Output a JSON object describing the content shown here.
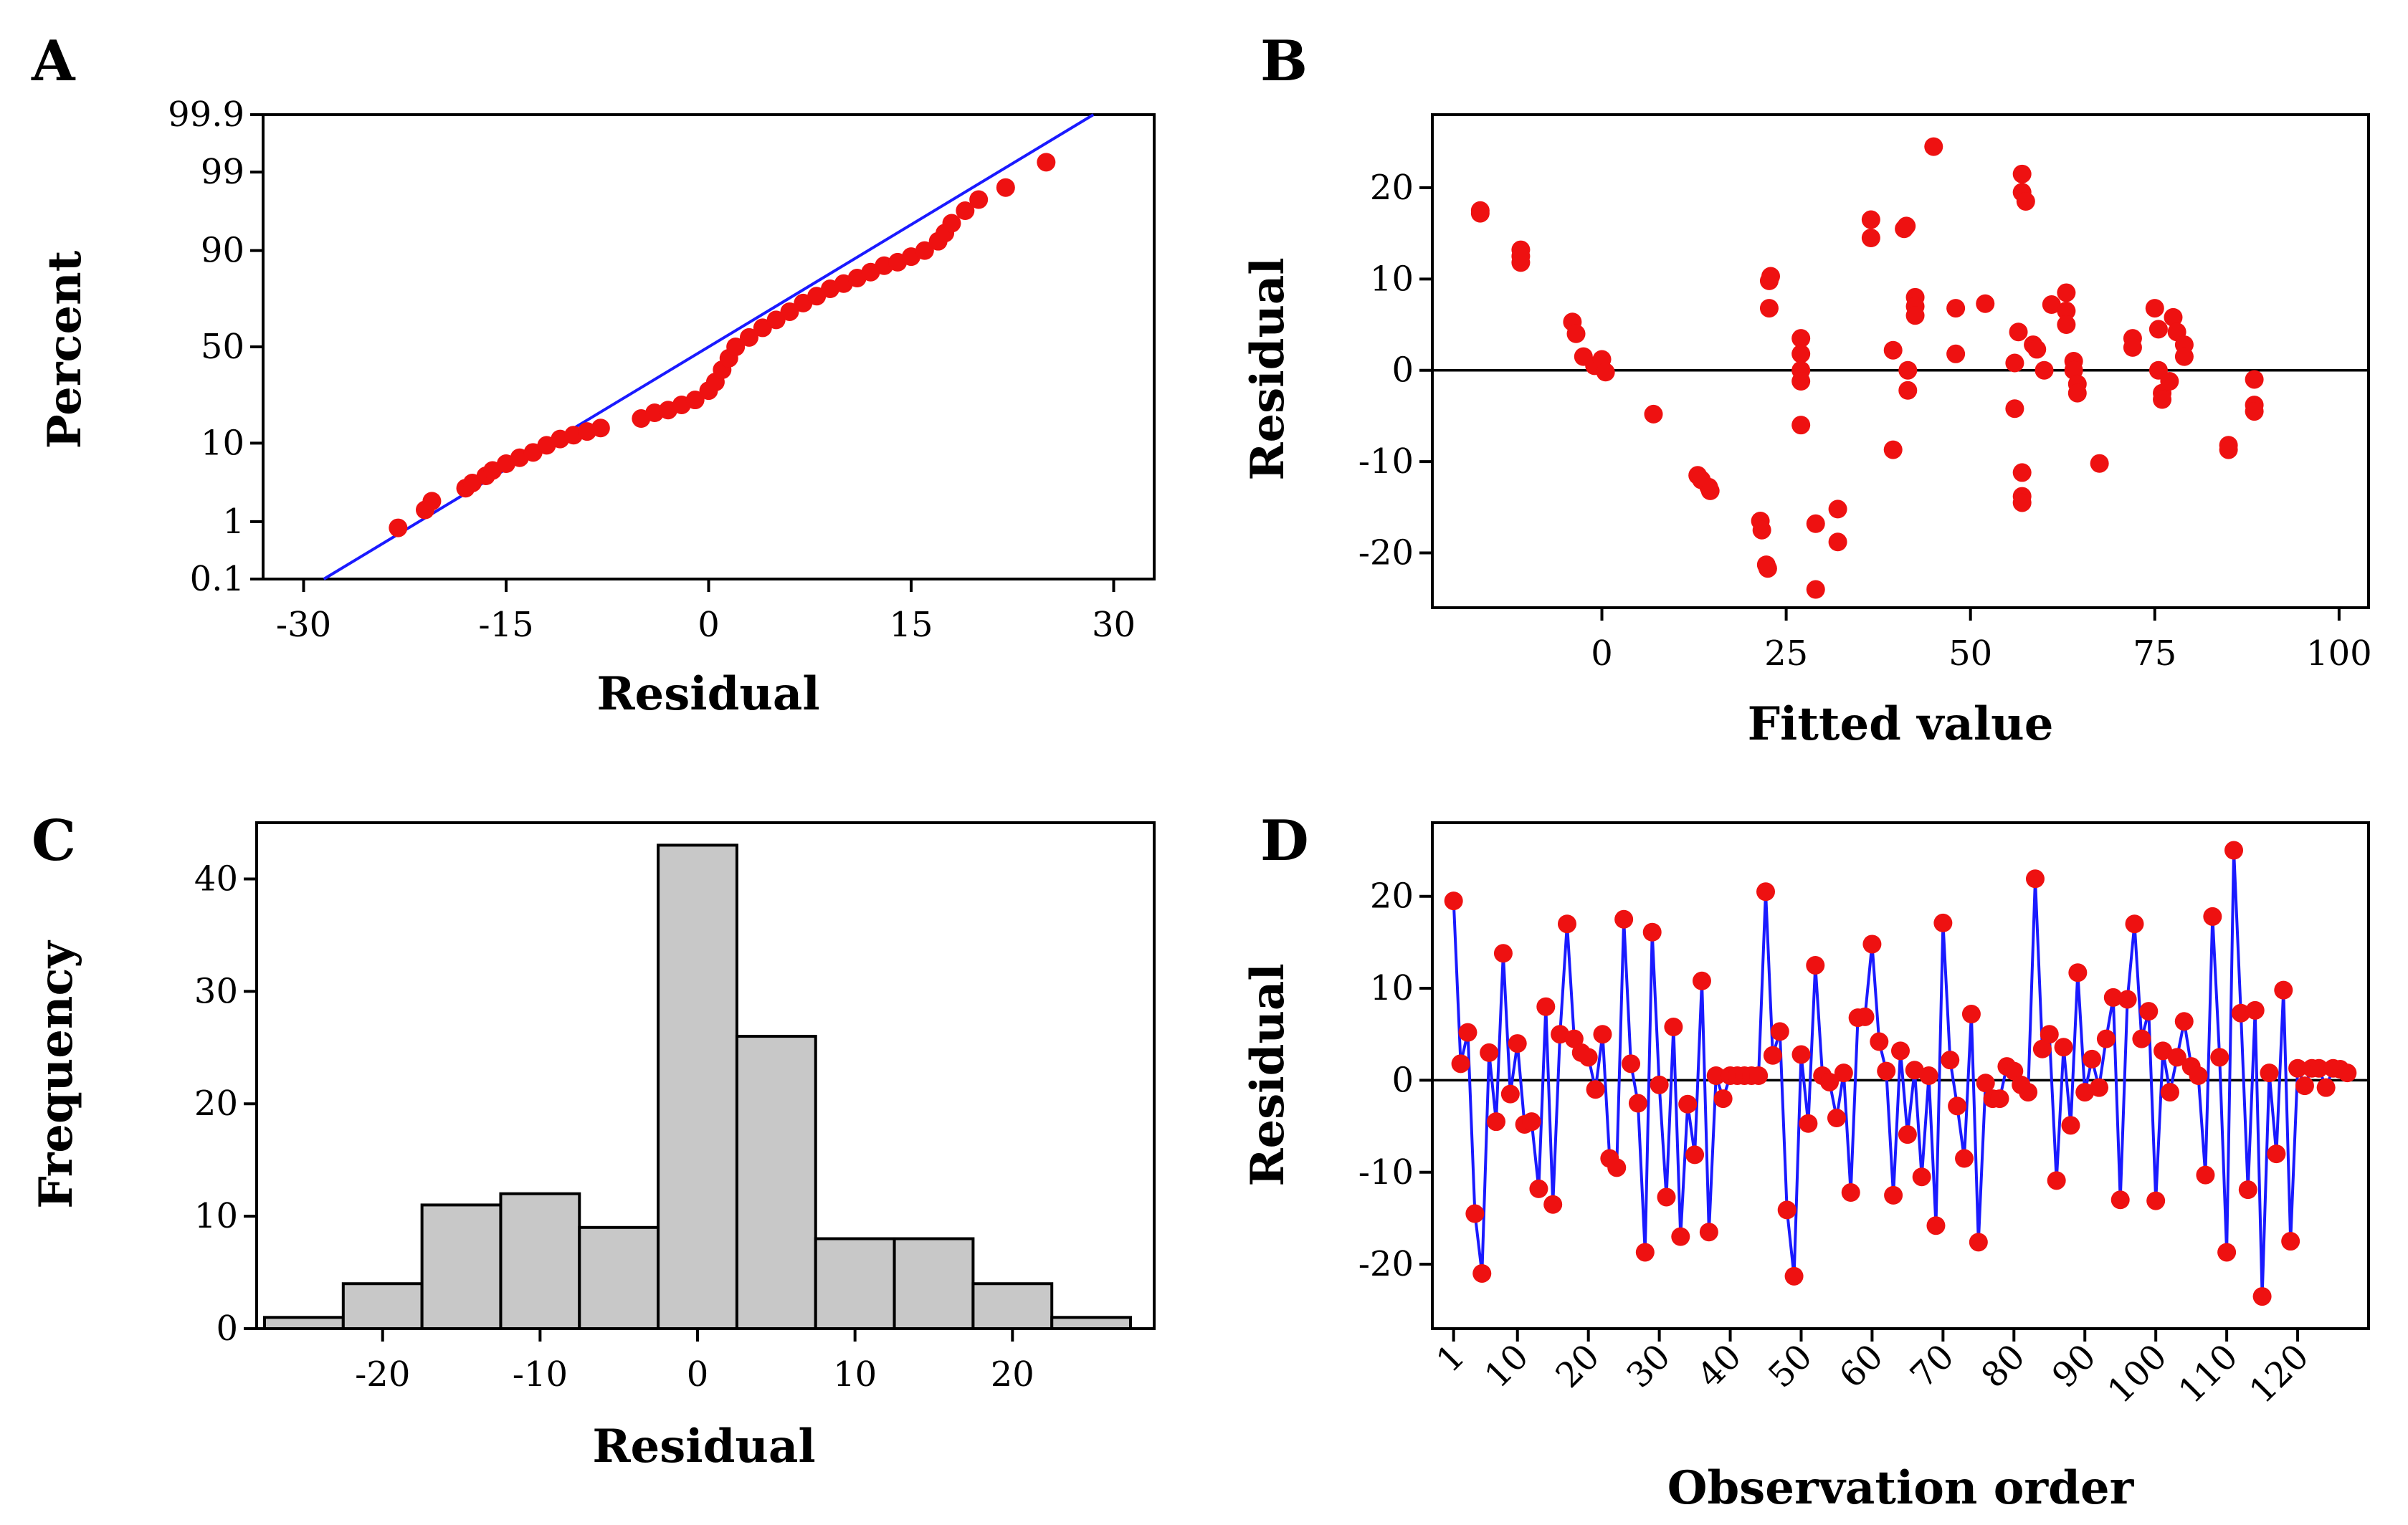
{
  "chart_data": [
    {
      "panel": "A",
      "type": "scatter",
      "subtype": "normal-probability-plot",
      "xlabel": "Residual",
      "ylabel": "Percent",
      "xlim": [
        -33,
        33
      ],
      "xticks": [
        -30,
        -15,
        0,
        15,
        30
      ],
      "yticks": [
        0.1,
        1,
        10,
        50,
        90,
        99,
        99.9
      ],
      "ytick_labels": [
        "0.1",
        "1",
        "10",
        "50",
        "90",
        "99",
        "99.9"
      ],
      "fit_line": {
        "x": [
          -28.5,
          28.5
        ],
        "percent": [
          0.1,
          99.9
        ]
      },
      "points": [
        {
          "x": -23,
          "p": 0.8
        },
        {
          "x": -21,
          "p": 1.5
        },
        {
          "x": -20.5,
          "p": 2.0
        },
        {
          "x": -18,
          "p": 3.0
        },
        {
          "x": -17.5,
          "p": 3.5
        },
        {
          "x": -16.5,
          "p": 4.3
        },
        {
          "x": -16,
          "p": 5
        },
        {
          "x": -15,
          "p": 6
        },
        {
          "x": -14,
          "p": 7
        },
        {
          "x": -13,
          "p": 8
        },
        {
          "x": -12,
          "p": 9.5
        },
        {
          "x": -11,
          "p": 11
        },
        {
          "x": -10,
          "p": 12
        },
        {
          "x": -9,
          "p": 13
        },
        {
          "x": -8,
          "p": 14
        },
        {
          "x": -5,
          "p": 17
        },
        {
          "x": -4,
          "p": 19
        },
        {
          "x": -3,
          "p": 20
        },
        {
          "x": -2,
          "p": 22
        },
        {
          "x": -1,
          "p": 24
        },
        {
          "x": 0,
          "p": 28
        },
        {
          "x": 0.5,
          "p": 32
        },
        {
          "x": 1,
          "p": 38
        },
        {
          "x": 1.5,
          "p": 44
        },
        {
          "x": 2,
          "p": 50
        },
        {
          "x": 3,
          "p": 55
        },
        {
          "x": 4,
          "p": 60
        },
        {
          "x": 5,
          "p": 64
        },
        {
          "x": 6,
          "p": 68
        },
        {
          "x": 7,
          "p": 72
        },
        {
          "x": 8,
          "p": 75
        },
        {
          "x": 9,
          "p": 78
        },
        {
          "x": 10,
          "p": 80
        },
        {
          "x": 11,
          "p": 82
        },
        {
          "x": 12,
          "p": 84
        },
        {
          "x": 13,
          "p": 86
        },
        {
          "x": 14,
          "p": 87
        },
        {
          "x": 15,
          "p": 88.5
        },
        {
          "x": 16,
          "p": 90
        },
        {
          "x": 17,
          "p": 92
        },
        {
          "x": 17.5,
          "p": 93.5
        },
        {
          "x": 18,
          "p": 95
        },
        {
          "x": 19,
          "p": 96.5
        },
        {
          "x": 20,
          "p": 97.5
        },
        {
          "x": 22,
          "p": 98.3
        },
        {
          "x": 25,
          "p": 99.3
        }
      ]
    },
    {
      "panel": "B",
      "type": "scatter",
      "xlabel": "Fitted value",
      "ylabel": "Residual",
      "xlim": [
        -23,
        104
      ],
      "ylim": [
        -26,
        28
      ],
      "xticks": [
        0,
        25,
        50,
        75,
        100
      ],
      "yticks": [
        -20,
        -10,
        0,
        10,
        20
      ],
      "reference_line_y": 0,
      "points": [
        [
          -16.5,
          17.5
        ],
        [
          -16.5,
          17.2
        ],
        [
          -11,
          13.2
        ],
        [
          -11,
          11.8
        ],
        [
          -11,
          12.5
        ],
        [
          -4,
          5.3
        ],
        [
          -3.5,
          4.0
        ],
        [
          -2.5,
          1.5
        ],
        [
          -1,
          0.5
        ],
        [
          0,
          1.2
        ],
        [
          0.5,
          -0.2
        ],
        [
          7,
          -4.8
        ],
        [
          13,
          -11.5
        ],
        [
          13.5,
          -12.0
        ],
        [
          14.5,
          -12.8
        ],
        [
          14.7,
          -13.2
        ],
        [
          21.5,
          -16.5
        ],
        [
          21.7,
          -17.5
        ],
        [
          22.3,
          -21.3
        ],
        [
          22.5,
          -21.7
        ],
        [
          22.7,
          6.8
        ],
        [
          22.7,
          9.8
        ],
        [
          22.9,
          10.3
        ],
        [
          27,
          3.5
        ],
        [
          27,
          1.8
        ],
        [
          27,
          0
        ],
        [
          27,
          -1.2
        ],
        [
          27,
          -6
        ],
        [
          29,
          -16.8
        ],
        [
          29,
          -24
        ],
        [
          32,
          -15.2
        ],
        [
          32,
          -18.8
        ],
        [
          36.5,
          16.5
        ],
        [
          36.5,
          14.5
        ],
        [
          39.5,
          2.2
        ],
        [
          39.5,
          -8.7
        ],
        [
          41,
          15.5
        ],
        [
          41.3,
          15.8
        ],
        [
          41.5,
          0
        ],
        [
          41.5,
          -2.2
        ],
        [
          42.5,
          8
        ],
        [
          42.5,
          7
        ],
        [
          42.5,
          6
        ],
        [
          45,
          24.5
        ],
        [
          48,
          6.8
        ],
        [
          48,
          1.8
        ],
        [
          52,
          7.3
        ],
        [
          56,
          0.8
        ],
        [
          56,
          -4.2
        ],
        [
          56.5,
          4.2
        ],
        [
          57,
          -11.2
        ],
        [
          57,
          -13.8
        ],
        [
          57,
          -14.5
        ],
        [
          57,
          21.5
        ],
        [
          57,
          19.5
        ],
        [
          57.5,
          18.5
        ],
        [
          58.5,
          2.8
        ],
        [
          59,
          2.3
        ],
        [
          60,
          0
        ],
        [
          61,
          7.2
        ],
        [
          63,
          8.5
        ],
        [
          63,
          6.5
        ],
        [
          63,
          5
        ],
        [
          64,
          1
        ],
        [
          64,
          0
        ],
        [
          64.5,
          -1.5
        ],
        [
          64.5,
          -2.5
        ],
        [
          67.5,
          -10.2
        ],
        [
          72,
          3.5
        ],
        [
          72,
          2.5
        ],
        [
          75,
          6.8
        ],
        [
          75.5,
          4.5
        ],
        [
          75.5,
          0
        ],
        [
          76,
          -2.5
        ],
        [
          76,
          -3.2
        ],
        [
          77,
          -1.2
        ],
        [
          77.5,
          5.8
        ],
        [
          78,
          4.2
        ],
        [
          79,
          2.8
        ],
        [
          79,
          1.5
        ],
        [
          85,
          -8.2
        ],
        [
          85,
          -8.7
        ],
        [
          88.5,
          -1
        ],
        [
          88.5,
          -3.8
        ],
        [
          88.5,
          -4.5
        ]
      ]
    },
    {
      "panel": "C",
      "type": "bar",
      "subtype": "histogram",
      "xlabel": "Residual",
      "ylabel": "Frequency",
      "xlim": [
        -28,
        29
      ],
      "ylim": [
        0,
        45
      ],
      "xticks": [
        -20,
        -10,
        0,
        10,
        20
      ],
      "yticks": [
        0,
        10,
        20,
        30,
        40
      ],
      "bin_width": 5,
      "bins": [
        {
          "from": -27.5,
          "to": -22.5,
          "count": 1
        },
        {
          "from": -22.5,
          "to": -17.5,
          "count": 4
        },
        {
          "from": -17.5,
          "to": -12.5,
          "count": 11
        },
        {
          "from": -12.5,
          "to": -7.5,
          "count": 12
        },
        {
          "from": -7.5,
          "to": -2.5,
          "count": 9
        },
        {
          "from": -2.5,
          "to": 2.5,
          "count": 43
        },
        {
          "from": 2.5,
          "to": 7.5,
          "count": 26
        },
        {
          "from": 7.5,
          "to": 12.5,
          "count": 8
        },
        {
          "from": 12.5,
          "to": 17.5,
          "count": 8
        },
        {
          "from": 17.5,
          "to": 22.5,
          "count": 4
        },
        {
          "from": 22.5,
          "to": 27.5,
          "count": 1
        }
      ]
    },
    {
      "panel": "D",
      "type": "line",
      "xlabel": "Observation order",
      "ylabel": "Residual",
      "xlim": [
        -2,
        130
      ],
      "ylim": [
        -27,
        28
      ],
      "xticks": [
        1,
        10,
        20,
        30,
        40,
        50,
        60,
        70,
        80,
        90,
        100,
        110,
        120
      ],
      "yticks": [
        -20,
        -10,
        0,
        10,
        20
      ],
      "reference_line_y": 0,
      "values": [
        19.5,
        1.8,
        5.2,
        -14.5,
        -21,
        3,
        -4.5,
        13.8,
        -1.5,
        4,
        -4.8,
        -4.5,
        -11.8,
        8,
        -13.5,
        5,
        17,
        4.5,
        3,
        2.5,
        -1,
        5,
        -8.5,
        -9.5,
        17.5,
        1.8,
        -2.5,
        -18.7,
        16.1,
        -0.5,
        -12.7,
        5.8,
        -17,
        -2.6,
        -8.1,
        10.8,
        -16.5,
        0.5,
        -2,
        0.5,
        0.5,
        0.5,
        0.5,
        0.5,
        20.5,
        2.7,
        5.3,
        -14.1,
        -21.3,
        2.8,
        -4.7,
        12.5,
        0.5,
        -0.2,
        -4.1,
        0.8,
        -12.2,
        6.8,
        6.9,
        14.8,
        4.2,
        1,
        -12.5,
        3.2,
        -5.9,
        1.1,
        -10.5,
        0.5,
        -15.8,
        17.1,
        2.2,
        -2.8,
        -8.5,
        7.2,
        -17.6,
        -0.3,
        -2,
        -2,
        1.5,
        1,
        -0.5,
        -1.3,
        21.9,
        3.4,
        5,
        -10.9,
        3.6,
        -4.9,
        11.7,
        -1.3,
        2.3,
        -0.8,
        4.5,
        9,
        -13,
        8.8,
        17,
        4.5,
        7.5,
        -13.1,
        3.2,
        -1.3,
        2.5,
        6.4,
        1.5,
        0.5,
        -10.3,
        17.8,
        2.5,
        -18.7,
        25,
        7.3,
        -11.9,
        7.6,
        -23.5,
        0.8,
        -8,
        9.8,
        -17.5,
        1.3,
        -0.6,
        1.3,
        1.3,
        -0.8,
        1.3,
        1.2,
        0.8
      ]
    }
  ],
  "labels": {
    "A": {
      "panel": "A",
      "xlabel": "Residual",
      "ylabel": "Percent",
      "xticks": [
        "-30",
        "-15",
        "0",
        "15",
        "30"
      ],
      "yticks": [
        "0.1",
        "1",
        "10",
        "50",
        "90",
        "99",
        "99.9"
      ]
    },
    "B": {
      "panel": "B",
      "xlabel": "Fitted value",
      "ylabel": "Residual",
      "xticks": [
        "0",
        "25",
        "50",
        "75",
        "100"
      ],
      "yticks": [
        "-20",
        "-10",
        "0",
        "10",
        "20"
      ]
    },
    "C": {
      "panel": "C",
      "xlabel": "Residual",
      "ylabel": "Frequency",
      "xticks": [
        "-20",
        "-10",
        "0",
        "10",
        "20"
      ],
      "yticks": [
        "0",
        "10",
        "20",
        "30",
        "40"
      ]
    },
    "D": {
      "panel": "D",
      "xlabel": "Observation order",
      "ylabel": "Residual",
      "xticks": [
        "1",
        "10",
        "20",
        "30",
        "40",
        "50",
        "60",
        "70",
        "80",
        "90",
        "100",
        "110",
        "120"
      ],
      "yticks": [
        "-20",
        "-10",
        "0",
        "10",
        "20"
      ]
    }
  },
  "colors": {
    "point": "#ee1111",
    "line": "#1a1aff",
    "bar_fill": "#c8c8c8",
    "axis": "#000000"
  }
}
